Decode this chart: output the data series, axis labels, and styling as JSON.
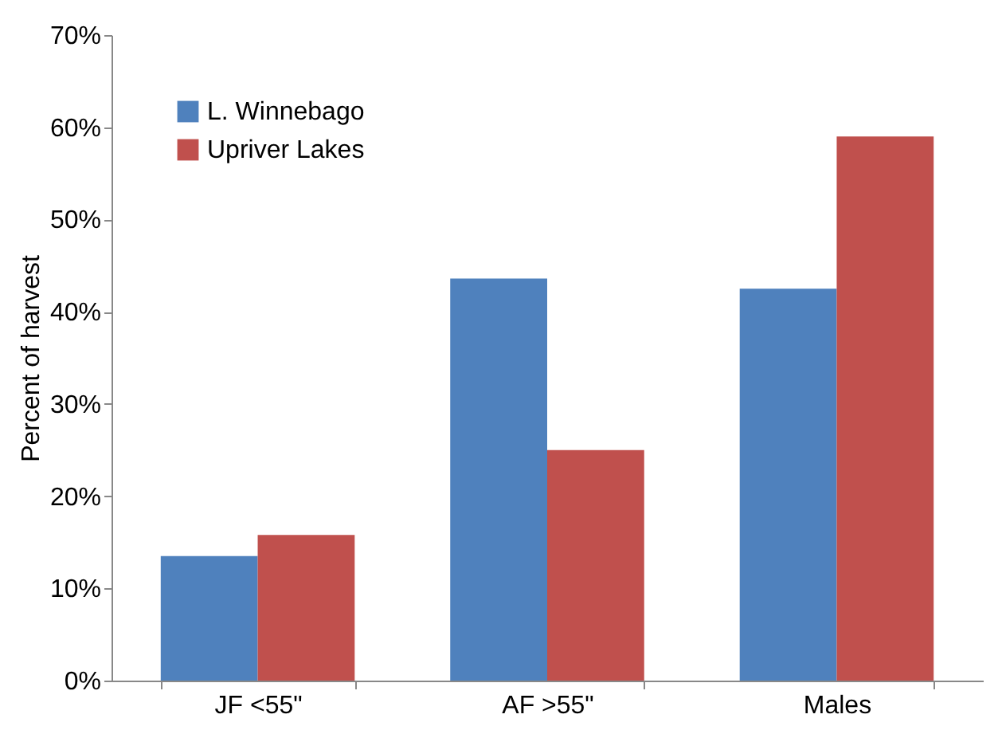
{
  "chart_data": {
    "type": "bar",
    "ylabel": "Percent of harvest",
    "categories": [
      "JF <55\"",
      "AF >55\"",
      "Males"
    ],
    "series": [
      {
        "name": "L. Winnebago",
        "color": "#4f81bd",
        "values": [
          13.5,
          43.6,
          42.5
        ]
      },
      {
        "name": "Upriver Lakes",
        "color": "#c0504d",
        "values": [
          15.8,
          25.0,
          59.0
        ]
      }
    ],
    "ylim": [
      0,
      70
    ],
    "yticks": [
      {
        "value": 0,
        "label": "0%"
      },
      {
        "value": 10,
        "label": "10%"
      },
      {
        "value": 20,
        "label": "20%"
      },
      {
        "value": 30,
        "label": "30%"
      },
      {
        "value": 40,
        "label": "40%"
      },
      {
        "value": 50,
        "label": "50%"
      },
      {
        "value": 60,
        "label": "60%"
      },
      {
        "value": 70,
        "label": "70%"
      }
    ],
    "grid": false,
    "legend": "top left"
  }
}
